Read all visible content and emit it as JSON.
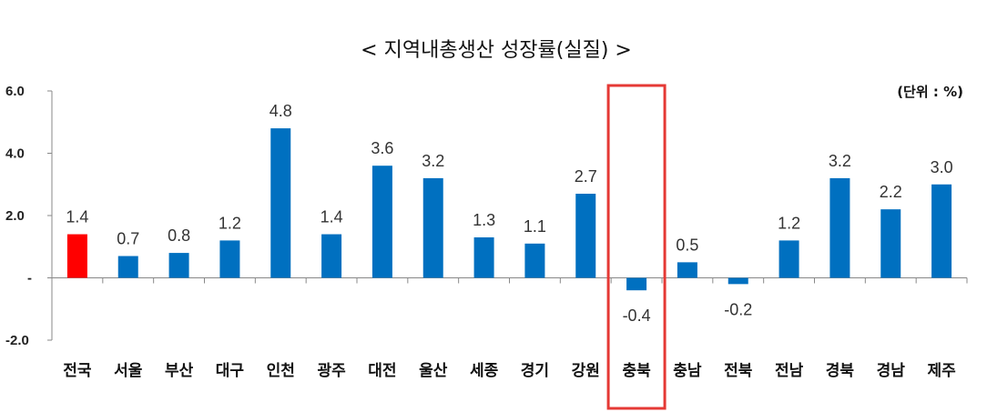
{
  "chart_data": {
    "type": "bar",
    "title": "< 지역내총생산 성장률(실질) >",
    "unit_label": "(단위 : %)",
    "categories": [
      "전국",
      "서울",
      "부산",
      "대구",
      "인천",
      "광주",
      "대전",
      "울산",
      "세종",
      "경기",
      "강원",
      "충북",
      "충남",
      "전북",
      "전남",
      "경북",
      "경남",
      "제주"
    ],
    "values": [
      1.4,
      0.7,
      0.8,
      1.2,
      4.8,
      1.4,
      3.6,
      3.2,
      1.3,
      1.1,
      2.7,
      -0.4,
      0.5,
      -0.2,
      1.2,
      3.2,
      2.2,
      3.0
    ],
    "value_labels": [
      "1.4",
      "0.7",
      "0.8",
      "1.2",
      "4.8",
      "1.4",
      "3.6",
      "3.2",
      "1.3",
      "1.1",
      "2.7",
      "-0.4",
      "0.5",
      "-0.2",
      "1.2",
      "3.2",
      "2.2",
      "3.0"
    ],
    "ylim": [
      -2.0,
      6.0
    ],
    "yticks": [
      6.0,
      4.0,
      2.0,
      0,
      -2.0
    ],
    "ytick_labels": [
      "6.0",
      "4.0",
      "2.0",
      "-",
      "-2.0"
    ],
    "grid": false,
    "colors": {
      "bar": "#0070C0",
      "highlight_bar": "#FF0000",
      "highlight_box": "#E53935",
      "axis": "#888888"
    },
    "highlight_bar_category": "전국",
    "highlight_box_category": "충북"
  }
}
